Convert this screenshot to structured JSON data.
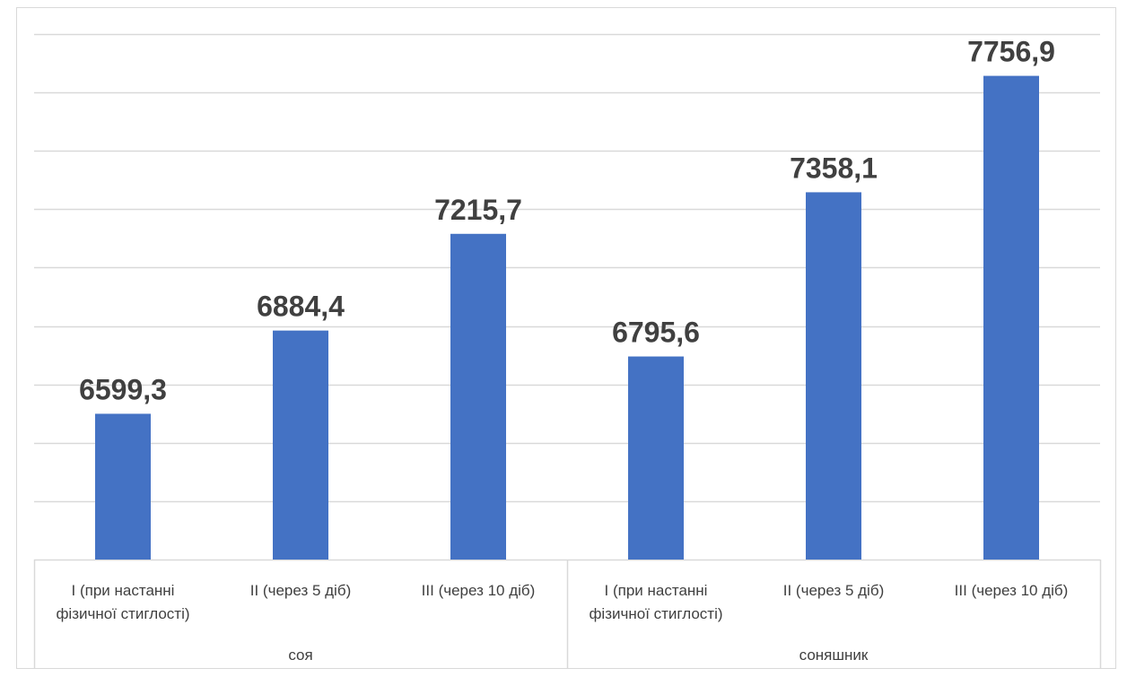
{
  "chart_data": {
    "type": "bar",
    "categories": [
      [
        "I (при настанні",
        "фізичної стиглості)"
      ],
      [
        "II (через 5 діб)"
      ],
      [
        "III (через 10  діб)"
      ],
      [
        "I (при настанні",
        "фізичної стиглості)"
      ],
      [
        "II (через 5 діб)"
      ],
      [
        "III (через 10  діб)"
      ]
    ],
    "groups": [
      {
        "label": "соя",
        "category_indices": [
          0,
          1,
          2
        ]
      },
      {
        "label": "соняшник",
        "category_indices": [
          3,
          4,
          5
        ]
      }
    ],
    "values": [
      6599.3,
      6884.4,
      7215.7,
      6795.6,
      7358.1,
      7756.9
    ],
    "data_labels": [
      "6599,3",
      "6884,4",
      "7215,7",
      "6795,6",
      "7358,1",
      "7756,9"
    ],
    "ylim": [
      6100,
      7900
    ],
    "gridline_step": 200,
    "grid": true,
    "bar_color": "#4472c4"
  }
}
